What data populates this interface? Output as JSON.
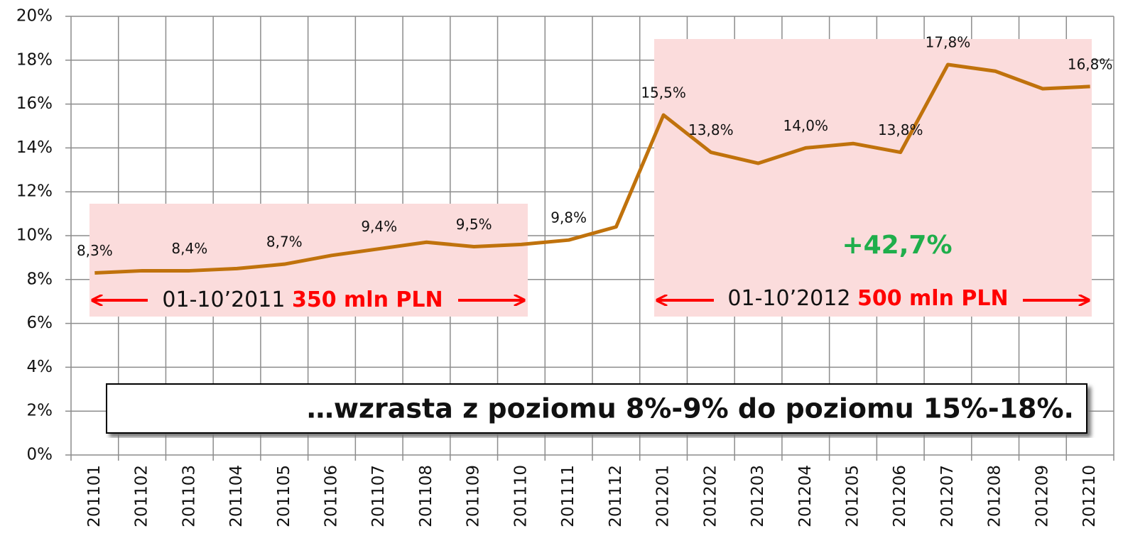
{
  "chart_data": {
    "type": "line",
    "categories": [
      "201101",
      "201102",
      "201103",
      "201104",
      "201105",
      "201106",
      "201107",
      "201108",
      "201109",
      "201110",
      "201111",
      "201112",
      "201201",
      "201202",
      "201203",
      "201204",
      "201205",
      "201206",
      "201207",
      "201208",
      "201209",
      "201210"
    ],
    "series": [
      {
        "name": null,
        "color": "#c0720c",
        "values": [
          8.3,
          8.4,
          8.4,
          8.5,
          8.7,
          9.1,
          9.4,
          9.7,
          9.5,
          9.6,
          9.8,
          10.4,
          15.5,
          13.8,
          13.3,
          14.0,
          14.2,
          13.8,
          17.8,
          17.5,
          16.7,
          16.8
        ],
        "value_labels": [
          "8,3%",
          null,
          "8,4%",
          null,
          "8,7%",
          null,
          "9,4%",
          null,
          "9,5%",
          null,
          "9,8%",
          null,
          "15,5%",
          "13,8%",
          null,
          "14,0%",
          null,
          "13,8%",
          "17,8%",
          null,
          null,
          "16,8%"
        ]
      }
    ],
    "ylim": [
      0,
      20
    ],
    "yticks": [
      {
        "value": 0,
        "label": "0%"
      },
      {
        "value": 2,
        "label": "2%"
      },
      {
        "value": 4,
        "label": "4%"
      },
      {
        "value": 6,
        "label": "6%"
      },
      {
        "value": 8,
        "label": "8%"
      },
      {
        "value": 10,
        "label": "10%"
      },
      {
        "value": 12,
        "label": "12%"
      },
      {
        "value": 14,
        "label": "14%"
      },
      {
        "value": 16,
        "label": "16%"
      },
      {
        "value": 18,
        "label": "18%"
      },
      {
        "value": 20,
        "label": "20%"
      }
    ],
    "grid": true,
    "annotations": {
      "period1": "01-10’2011 ",
      "amount1": "350 mln PLN",
      "period2": "01-10’2012 ",
      "amount2": "500 mln PLN",
      "growth": "+42,7%",
      "note": "…wzrasta z poziomu 8%-9% do poziomu 15%-18%."
    }
  }
}
